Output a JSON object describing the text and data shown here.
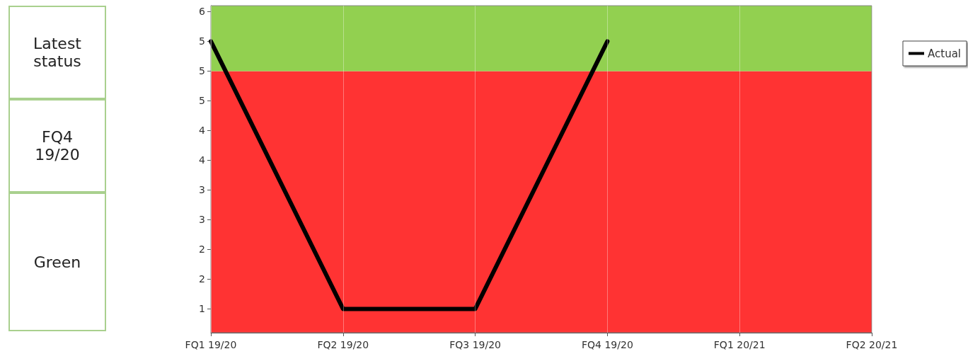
{
  "chart_data": {
    "type": "line",
    "categories": [
      "FQ1 19/20",
      "FQ2 19/20",
      "FQ3 19/20",
      "FQ4 19/20",
      "FQ1 20/21",
      "FQ2 20/21"
    ],
    "series": [
      {
        "name": "Actual",
        "color": "#000000",
        "values": [
          5.5,
          1,
          1,
          5.5,
          null,
          null
        ]
      }
    ],
    "ylim": [
      0.6,
      6.1
    ],
    "yticks": [
      1,
      {
        "value": 1.5,
        "label": "2"
      },
      2,
      {
        "value": 2.5,
        "label": "3"
      },
      3,
      {
        "value": 3.5,
        "label": "4"
      },
      4,
      {
        "value": 4.5,
        "label": "5"
      },
      5,
      {
        "value": 5.5,
        "label": "5"
      },
      6
    ],
    "bands": [
      {
        "axis": "y",
        "from": 0.6,
        "to": 5,
        "color": "#ff3333"
      },
      {
        "axis": "y",
        "from": 5,
        "to": 6.1,
        "color": "#92d050"
      }
    ],
    "annotations": [
      "Latest status",
      "FQ4 19/20",
      "Green"
    ],
    "grid": true,
    "legend": "top right",
    "marker": "none",
    "line_style": "solid"
  }
}
